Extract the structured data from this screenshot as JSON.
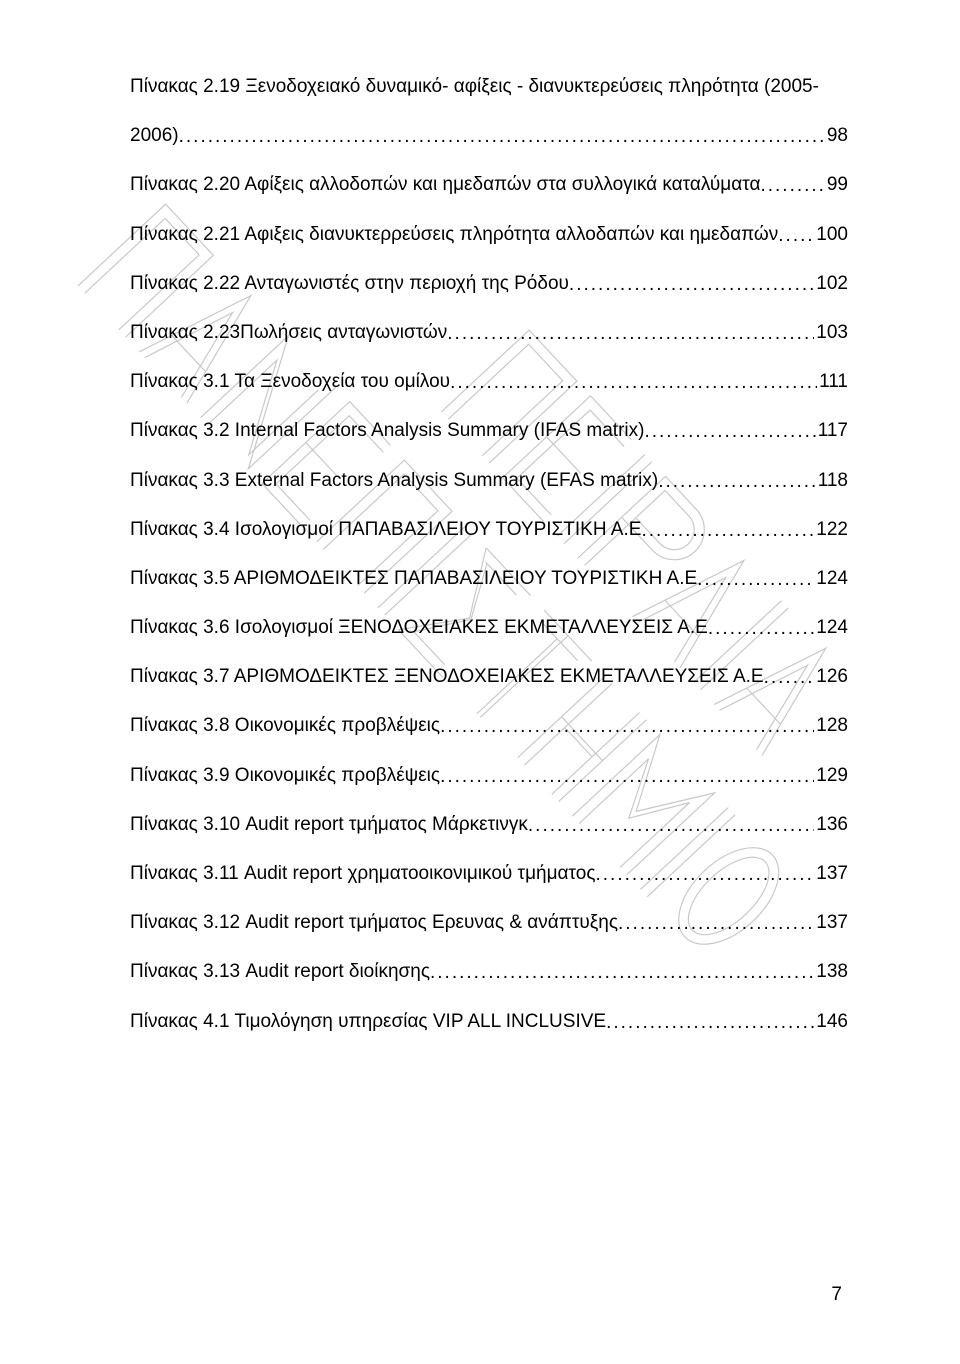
{
  "watermark": {
    "stroke": "#c9c9c9",
    "stroke_width": 1.2
  },
  "toc": [
    {
      "label_line1": "Πίνακας 2.19 Ξενοδοχειακό δυναμικό- αφίξεις - διανυκτερεύσεις πληρότητα (2005-",
      "label_line2": "2006)",
      "page": "98",
      "multiline": true
    },
    {
      "label": "Πίνακας 2.20 Αφίξεις αλλοδοπών και ημεδαπών στα συλλογικά καταλύματα",
      "page": "99"
    },
    {
      "label": "Πίνακας 2.21 Αφιξεις διανυκτερρεύσεις πληρότητα αλλοδαπών και ημεδαπών",
      "page": "100"
    },
    {
      "label": "Πίνακας 2.22 Ανταγωνιστές στην περιοχή της Ρόδου",
      "page": "102"
    },
    {
      "label": "Πίνακας 2.23Πωλήσεις ανταγωνιστών",
      "page": "103"
    },
    {
      "label": "Πίνακας 3.1 Τα Ξενοδοχεία του ομίλου",
      "page": "111"
    },
    {
      "label": "Πίνακας 3.2 Internal Factors Analysis Summary (IFAS matrix)",
      "page": "117"
    },
    {
      "label": "Πίνακας 3.3 External Factors Analysis Summary (EFAS matrix)",
      "page": "118"
    },
    {
      "label": "Πίνακας 3.4 Ισολογισμοί ΠΑΠΑΒΑΣΙΛΕΙΟΥ ΤΟΥΡΙΣΤΙΚΗ Α.Ε",
      "page": "122"
    },
    {
      "label": "Πίνακας 3.5 ΑΡΙΘΜΟΔΕΙΚΤΕΣ ΠΑΠΑΒΑΣΙΛΕΙΟΥ ΤΟΥΡΙΣΤΙΚΗ Α.Ε",
      "page": "124"
    },
    {
      "label": "Πίνακας 3.6 Ισολογισμοί ΞΕΝΟΔΟΧΕΙΑΚΕΣ ΕΚΜΕΤΑΛΛΕΥΣΕΙΣ Α.Ε",
      "page": "124"
    },
    {
      "label": "Πίνακας 3.7 ΑΡΙΘΜΟΔΕΙΚΤΕΣ ΞΕΝΟΔΟΧΕΙΑΚΕΣ ΕΚΜΕΤΑΛΛΕΥΣΕΙΣ Α.Ε",
      "page": "126"
    },
    {
      "label": "Πίνακας 3.8 Οικονομικές προβλέψεις",
      "page": "128"
    },
    {
      "label": "Πίνακας 3.9 Οικονομικές προβλέψεις",
      "page": "129"
    },
    {
      "label": "Πίνακας 3.10 Audit report  τμήματος Μάρκετινγκ",
      "page": "136"
    },
    {
      "label": "Πίνακας 3.11 Audit report   χρηματοοικονιμικού τμήματος",
      "page": "137"
    },
    {
      "label": "Πίνακας 3.12 Audit report  τμήματος Ερευνας & ανάπτυξης",
      "page": "137"
    },
    {
      "label": "Πίνακας 3.13 Audit report διοίκησης",
      "page": "138"
    },
    {
      "label": "Πίνακας 4.1 Τιμολόγηση υπηρεσίας VIP ALL INCLUSIVE",
      "page": "146"
    }
  ],
  "page_number": "7"
}
